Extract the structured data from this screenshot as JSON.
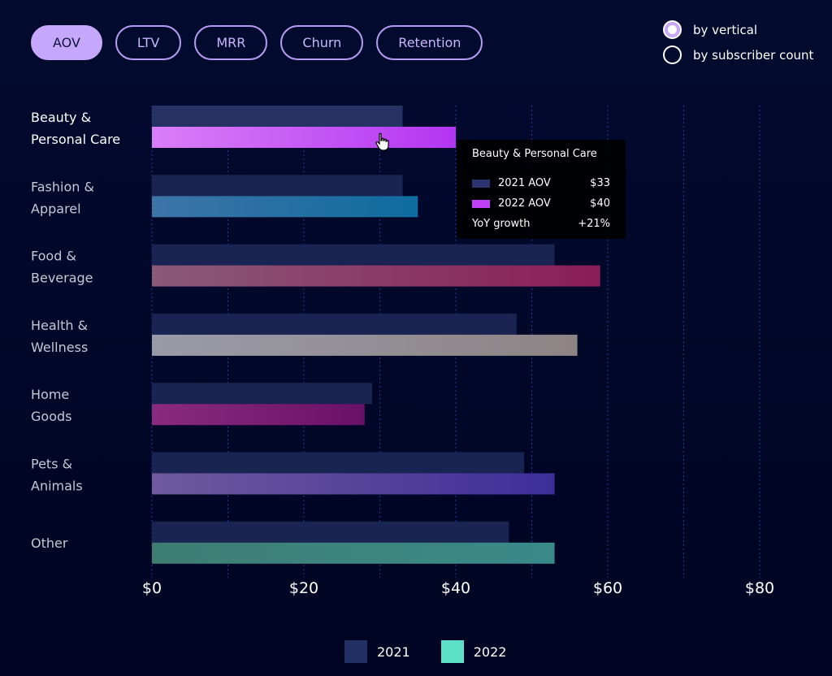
{
  "tabs": [
    {
      "label": "AOV",
      "active": true
    },
    {
      "label": "LTV",
      "active": false
    },
    {
      "label": "MRR",
      "active": false
    },
    {
      "label": "Churn",
      "active": false
    },
    {
      "label": "Retention",
      "active": false
    }
  ],
  "radios": [
    {
      "label": "by vertical",
      "checked": true
    },
    {
      "label": "by subscriber count",
      "checked": false
    }
  ],
  "tooltip": {
    "title": "Beauty & Personal Care",
    "rows": [
      {
        "label": "2021 AOV",
        "value": "$33",
        "color": "#2a3570"
      },
      {
        "label": "2022 AOV",
        "value": "$40",
        "color": "#c040f5"
      }
    ],
    "growth_label": "YoY growth",
    "growth_value": "+21%"
  },
  "legend": [
    {
      "label": "2021",
      "color": "#233066"
    },
    {
      "label": "2022",
      "color": "#5ee0c8"
    }
  ],
  "chart_data": {
    "type": "bar",
    "orientation": "horizontal",
    "categories": [
      [
        "Beauty &",
        "Personal Care"
      ],
      [
        "Fashion &",
        "Apparel"
      ],
      [
        "Food &",
        "Beverage"
      ],
      [
        "Health &",
        "Wellness"
      ],
      [
        "Home",
        "Goods"
      ],
      [
        "Pets &",
        "Animals"
      ],
      [
        "Other"
      ]
    ],
    "series": [
      {
        "name": "2021",
        "values": [
          33,
          33,
          53,
          48,
          29,
          49,
          47
        ]
      },
      {
        "name": "2022",
        "values": [
          40,
          35,
          59,
          56,
          28,
          53,
          53
        ]
      }
    ],
    "colors_2022": [
      [
        "#d97ff7",
        "#b435f2"
      ],
      [
        "#3d74a6",
        "#0f6ba0"
      ],
      [
        "#8a5a78",
        "#8a1d58"
      ],
      [
        "#9a9ba8",
        "#8d8485"
      ],
      [
        "#8a2a80",
        "#6a1068"
      ],
      [
        "#6e5a9c",
        "#3e2e9a"
      ],
      [
        "#3f7d73",
        "#3a8a8a"
      ]
    ],
    "color_2021": "#1a2452",
    "highlighted_category": 0,
    "xlim": [
      0,
      80
    ],
    "x_ticks": [
      "$0",
      "$20",
      "$40",
      "$60",
      "$80"
    ],
    "x_tick_values": [
      0,
      20,
      40,
      60,
      80
    ],
    "grid": "vertical dotted"
  }
}
